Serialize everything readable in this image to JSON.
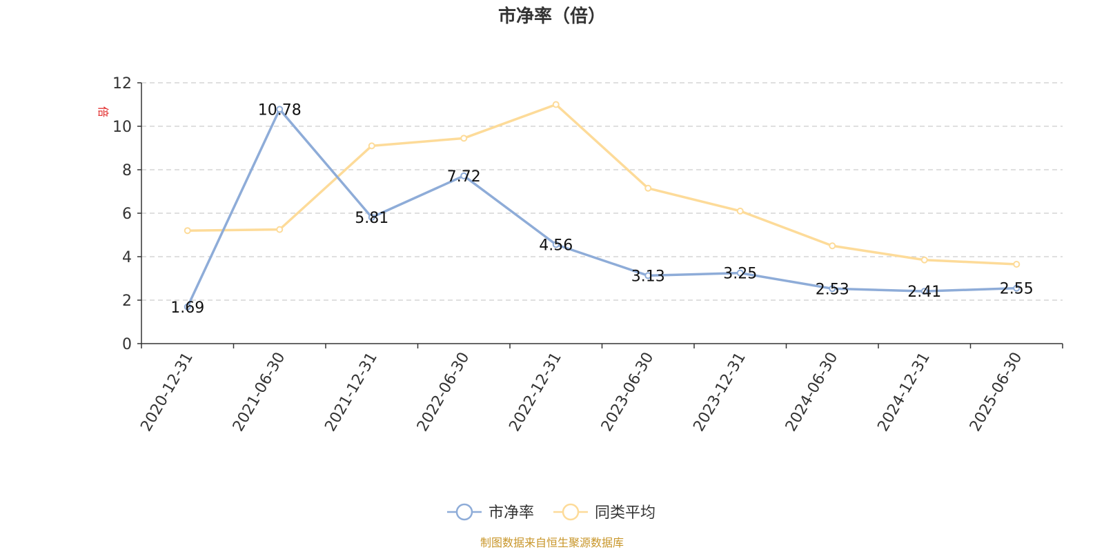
{
  "chart_data": {
    "type": "line",
    "title": "市净率（倍）",
    "ylabel": "倍",
    "ylim": [
      0,
      12
    ],
    "yticks": [
      0,
      2,
      4,
      6,
      8,
      10,
      12
    ],
    "grid": true,
    "legend_position": "bottom",
    "categories": [
      "2020-12-31",
      "2021-06-30",
      "2021-12-31",
      "2022-06-30",
      "2022-12-31",
      "2023-06-30",
      "2023-12-31",
      "2024-06-30",
      "2024-12-31",
      "2025-06-30"
    ],
    "series": [
      {
        "name": "市净率",
        "color": "#8eacd8",
        "values": [
          1.69,
          10.78,
          5.81,
          7.72,
          4.56,
          3.13,
          3.25,
          2.53,
          2.41,
          2.55
        ],
        "labels": [
          "1.69",
          "10.78",
          "5.81",
          "7.72",
          "4.56",
          "3.13",
          "3.25",
          "2.53",
          "2.41",
          "2.55"
        ],
        "show_labels": true
      },
      {
        "name": "同类平均",
        "color": "#fddb99",
        "values": [
          5.2,
          5.25,
          9.1,
          9.45,
          11.0,
          7.15,
          6.1,
          4.5,
          3.85,
          3.65
        ],
        "show_labels": false
      }
    ]
  },
  "source": "制图数据来自恒生聚源数据库"
}
